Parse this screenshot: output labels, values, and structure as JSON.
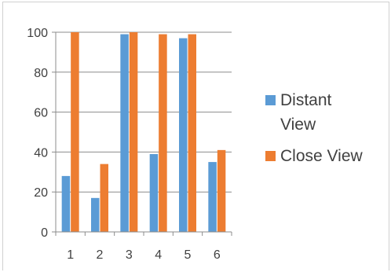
{
  "colors": {
    "distant": "#5B9BD5",
    "close": "#ED7D31",
    "grid": "#8c8c8c",
    "text": "#404040"
  },
  "chart_data": {
    "type": "bar",
    "title": "",
    "xlabel": "",
    "ylabel": "",
    "categories": [
      "1",
      "2",
      "3",
      "4",
      "5",
      "6"
    ],
    "ylim": [
      0,
      100
    ],
    "yticks": [
      0,
      20,
      40,
      60,
      80,
      100
    ],
    "grid": true,
    "legend_position": "right",
    "series": [
      {
        "name": "Distant View",
        "values": [
          28,
          17,
          99,
          39,
          97,
          35
        ]
      },
      {
        "name": "Close View",
        "values": [
          100,
          34,
          100,
          99,
          99,
          41
        ]
      }
    ]
  }
}
